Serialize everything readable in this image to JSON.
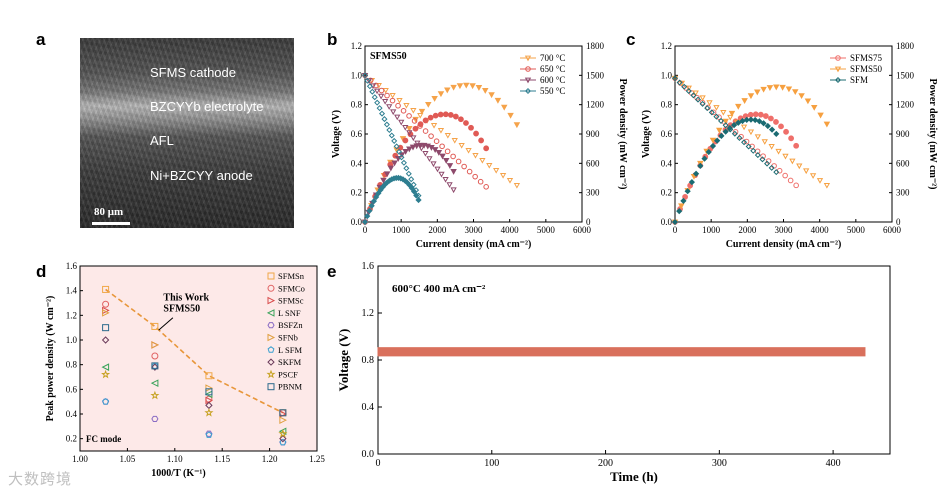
{
  "figure": {
    "panel_a": {
      "letter": "a",
      "layers": [
        "SFMS cathode",
        "BZCYYb electrolyte",
        "AFL",
        "Ni+BZCYY anode"
      ],
      "scale_label": "80 μm"
    },
    "panel_b": {
      "letter": "b",
      "inset_label": "SFMS50"
    },
    "panel_c": {
      "letter": "c"
    },
    "panel_d": {
      "letter": "d",
      "annotation_line1": "This Work",
      "annotation_line2": "SFMS50",
      "mode_label": "FC mode"
    },
    "panel_e": {
      "letter": "e",
      "condition_label": "600°C 400 mA cm⁻²"
    }
  },
  "watermark": "大数跨境",
  "chart_data": [
    {
      "id": "b",
      "type": "line",
      "xlabel": "Current density (mA cm⁻²)",
      "ylabel": "Voltage (V)",
      "y2label": "Power density (mW cm⁻²)",
      "xlim": [
        0,
        6000
      ],
      "ylim": [
        0,
        1.2
      ],
      "y2lim": [
        0,
        1800
      ],
      "xticks": [
        0,
        1000,
        2000,
        3000,
        4000,
        5000,
        6000
      ],
      "yticks": [
        0,
        0.2,
        0.4,
        0.6,
        0.8,
        1.0,
        1.2
      ],
      "y2ticks": [
        0,
        300,
        600,
        900,
        1200,
        1500,
        1800
      ],
      "legend_position": "top-right",
      "series": [
        {
          "name": "700 °C",
          "color": "#f5a34a",
          "ocv": 1.0,
          "jmax": 4200,
          "vend": 0.25,
          "pmax_j": 2950
        },
        {
          "name": "650 °C",
          "color": "#e05a55",
          "ocv": 1.0,
          "jmax": 3350,
          "vend": 0.24,
          "pmax_j": 2300
        },
        {
          "name": "600 °C",
          "color": "#8e4a6c",
          "ocv": 1.0,
          "jmax": 2450,
          "vend": 0.22,
          "pmax_j": 1800
        },
        {
          "name": "550 °C",
          "color": "#2e7e90",
          "ocv": 1.0,
          "jmax": 1480,
          "vend": 0.18,
          "pmax_j": 900
        }
      ]
    },
    {
      "id": "c",
      "type": "line",
      "xlabel": "Current density (mA cm⁻²)",
      "ylabel": "Voltage (V)",
      "y2label": "Power density (mW cm⁻²)",
      "xlim": [
        0,
        6000
      ],
      "ylim": [
        0,
        1.2
      ],
      "y2lim": [
        0,
        1800
      ],
      "xticks": [
        0,
        1000,
        2000,
        3000,
        4000,
        5000,
        6000
      ],
      "yticks": [
        0,
        0.2,
        0.4,
        0.6,
        0.8,
        1.0,
        1.2
      ],
      "y2ticks": [
        0,
        300,
        600,
        900,
        1200,
        1500,
        1800
      ],
      "legend_position": "top-right",
      "series": [
        {
          "name": "SFMS75",
          "color": "#ef6f6a",
          "ocv": 0.98,
          "jmax": 3350,
          "vend": 0.25,
          "pmax_j": 2250
        },
        {
          "name": "SFMS50",
          "color": "#f6a040",
          "ocv": 0.98,
          "jmax": 4200,
          "vend": 0.25,
          "pmax_j": 3000
        },
        {
          "name": "SFM",
          "color": "#1b6b72",
          "ocv": 0.98,
          "jmax": 2800,
          "vend": 0.34,
          "pmax_j": 1900
        }
      ]
    },
    {
      "id": "d",
      "type": "scatter",
      "xlabel": "1000/T (K⁻¹)",
      "ylabel": "Peak power density (W cm⁻²)",
      "xlim": [
        1.0,
        1.25
      ],
      "ylim": [
        0.1,
        1.6
      ],
      "xticks": [
        1.0,
        1.05,
        1.1,
        1.15,
        1.2,
        1.25
      ],
      "yticks": [
        0.2,
        0.4,
        0.6,
        0.8,
        1.0,
        1.2,
        1.4,
        1.6
      ],
      "legend_position": "top-right",
      "x": [
        1.027,
        1.079,
        1.136,
        1.214
      ],
      "series": [
        {
          "name": "SFMSn",
          "marker": "square",
          "color": "#f0a848",
          "values": [
            1.41,
            1.11,
            0.71,
            0.41
          ]
        },
        {
          "name": "SFMCo",
          "marker": "circle",
          "color": "#e06262",
          "values": [
            1.29,
            0.87,
            0.52,
            0.41
          ]
        },
        {
          "name": "SFMSc",
          "marker": "triangle-right",
          "color": "#d84a4a",
          "values": [
            1.24,
            0.96,
            0.51,
            0.4
          ]
        },
        {
          "name": "L SNF",
          "marker": "triangle-left",
          "color": "#3aa35a",
          "values": [
            0.78,
            0.65,
            0.56,
            0.26
          ]
        },
        {
          "name": "BSFZn",
          "marker": "hexagon",
          "color": "#8a6cc4",
          "values": [
            0.5,
            0.36,
            0.24,
            0.17
          ]
        },
        {
          "name": "SFNb",
          "marker": "triangle-right",
          "color": "#e0a040",
          "values": [
            1.22,
            0.96,
            0.61,
            0.35
          ]
        },
        {
          "name": "L SFM",
          "marker": "pentagon",
          "color": "#3aa0d0",
          "values": [
            0.5,
            0.79,
            0.23,
            0.17
          ]
        },
        {
          "name": "SKFM",
          "marker": "diamond",
          "color": "#6a3a5a",
          "values": [
            1.0,
            0.78,
            0.47,
            0.2
          ]
        },
        {
          "name": "PSCF",
          "marker": "star",
          "color": "#c7a222",
          "values": [
            0.72,
            0.55,
            0.41,
            0.24
          ]
        },
        {
          "name": "PBNM",
          "marker": "square",
          "color": "#2c6a8c",
          "values": [
            1.1,
            0.79,
            0.58,
            0.41
          ]
        }
      ],
      "trend": {
        "color": "#e8963a",
        "x": [
          1.027,
          1.079,
          1.136,
          1.214
        ],
        "values": [
          1.41,
          1.11,
          0.71,
          0.41
        ]
      }
    },
    {
      "id": "e",
      "type": "line",
      "xlabel": "Time (h)",
      "ylabel": "Voltage (V)",
      "xlim": [
        0,
        450
      ],
      "ylim": [
        0,
        1.6
      ],
      "xticks": [
        0,
        100,
        200,
        300,
        400
      ],
      "yticks": [
        0.0,
        0.4,
        0.8,
        1.2,
        1.6
      ],
      "series": [
        {
          "name": "",
          "color": "#d9705c",
          "x_end": 428,
          "value": 0.87
        }
      ]
    }
  ]
}
